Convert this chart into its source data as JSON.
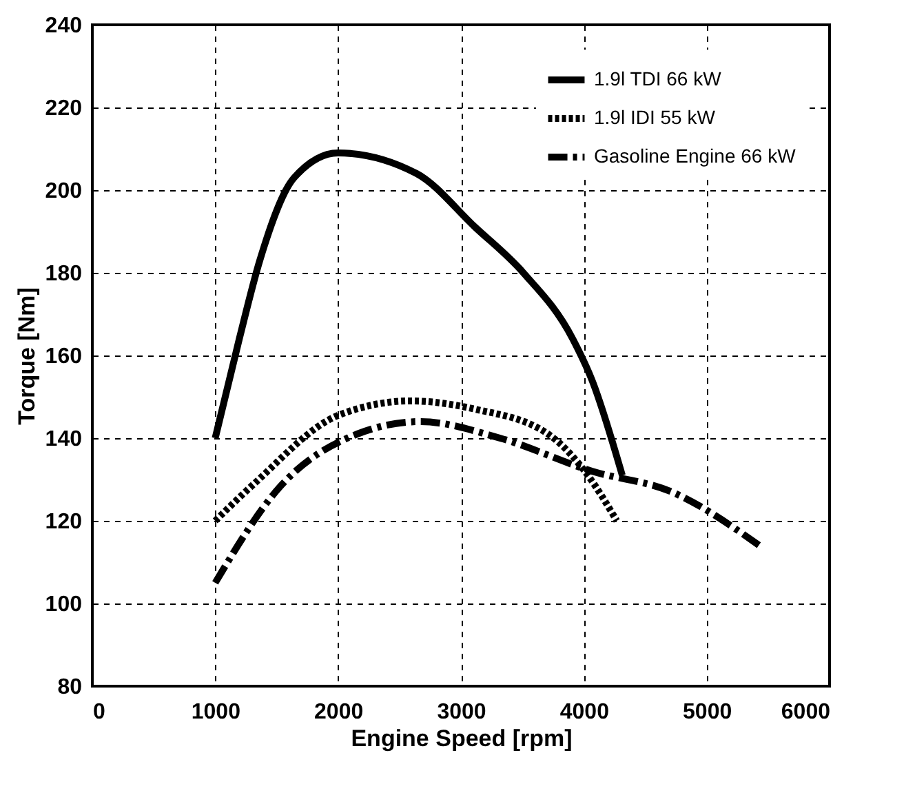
{
  "chart_data": {
    "type": "line",
    "xlabel": "Engine Speed [rpm]",
    "ylabel": "Torque [Nm]",
    "xlim": [
      0,
      6000
    ],
    "xticks": [
      0,
      1000,
      2000,
      3000,
      4000,
      5000,
      6000
    ],
    "ylim": [
      80,
      240
    ],
    "yticks": [
      80,
      100,
      120,
      140,
      160,
      180,
      200,
      220,
      240
    ],
    "grid": true,
    "legend": "top right",
    "marker": "none",
    "series": [
      {
        "name": "1.9l TDI 66 kW",
        "color": "#000000",
        "line_style": "solid",
        "x": [
          1000,
          1196,
          1363,
          1642,
          2000,
          2640,
          3117,
          3508,
          3910,
          4067,
          4313
        ],
        "values": [
          140,
          164,
          183,
          203,
          209,
          204,
          191,
          180,
          164,
          154,
          131
        ]
      },
      {
        "name": "1.9l IDI 55 kW",
        "color": "#000000",
        "line_style": "dotted",
        "x": [
          1000,
          1318,
          2000,
          2590,
          3117,
          3709,
          4033,
          4268
        ],
        "values": [
          120,
          129,
          145.5,
          149,
          147,
          141,
          131,
          120
        ]
      },
      {
        "name": "Gasoline Engine 66 kW",
        "color": "#000000",
        "line_style": "dashdot",
        "x": [
          1000,
          1520,
          2156,
          2670,
          3318,
          4067,
          4715,
          5430
        ],
        "values": [
          105,
          128,
          141,
          144,
          140,
          132,
          127,
          114
        ]
      }
    ]
  }
}
